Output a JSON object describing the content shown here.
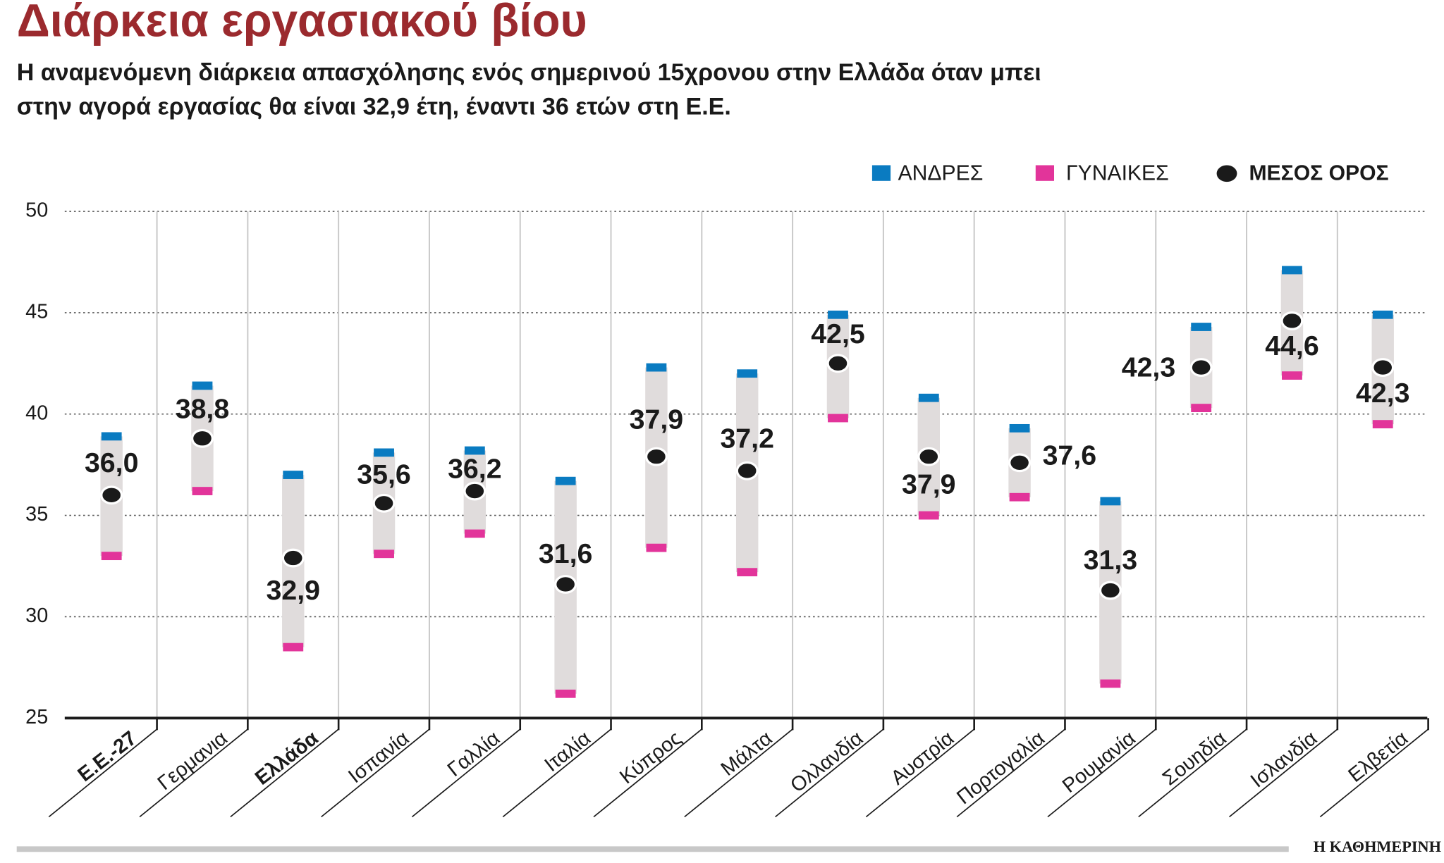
{
  "chart_data": {
    "type": "range",
    "title": "Διάρκεια εργασιακού βίου",
    "subtitle": [
      "Η αναμενόμενη διάρκεια απασχόλησης ενός σημερινού 15χρονου στην Ελλάδα όταν μπει",
      "στην αγορά εργασίας θα είναι 32,9 έτη, έναντι 36 ετών στη Ε.Ε."
    ],
    "categories": [
      "Ε.Ε.-27",
      "Γερμανια",
      "Ελλάδα",
      "Ισπανία",
      "Γαλλία",
      "Ιταλία",
      "Κύπρος",
      "Μάλτα",
      "Ολλανδία",
      "Αυστρία",
      "Πορτογαλία",
      "Ρουμανία",
      "Σουηδία",
      "Ισλανδία",
      "Ελβετία"
    ],
    "series": [
      {
        "name": "ΑΝΔΡΕΣ",
        "color": "#0a7bc1",
        "values": [
          38.9,
          41.4,
          37.0,
          38.1,
          38.2,
          36.7,
          42.3,
          42.0,
          44.9,
          40.8,
          39.3,
          35.7,
          44.3,
          47.1,
          44.9
        ]
      },
      {
        "name": "ΓΥΝΑΙΚΕΣ",
        "color": "#e2349a",
        "values": [
          33.0,
          36.2,
          28.5,
          33.1,
          34.1,
          26.2,
          33.4,
          32.2,
          39.8,
          35.0,
          35.9,
          26.7,
          40.3,
          41.9,
          39.5
        ]
      },
      {
        "name": "ΜΕΣΟΣ ΟΡΟΣ",
        "color": "#1a1a1a",
        "values": [
          36.0,
          38.8,
          32.9,
          35.6,
          36.2,
          31.6,
          37.9,
          37.2,
          42.5,
          37.9,
          37.6,
          31.3,
          42.3,
          44.6,
          42.3
        ],
        "value_labels": [
          "36,0",
          "38,8",
          "32,9",
          "35,6",
          "36,2",
          "31,6",
          "37,9",
          "37,2",
          "42,5",
          "37,9",
          "37,6",
          "31,3",
          "42,3",
          "44,6",
          "42,3"
        ]
      }
    ],
    "ylim": [
      25,
      50
    ],
    "yticks": [
      25,
      30,
      35,
      40,
      45,
      50
    ],
    "grid": true,
    "source": "Η ΚΑΘΗΜΕΡΙΝΗ"
  }
}
